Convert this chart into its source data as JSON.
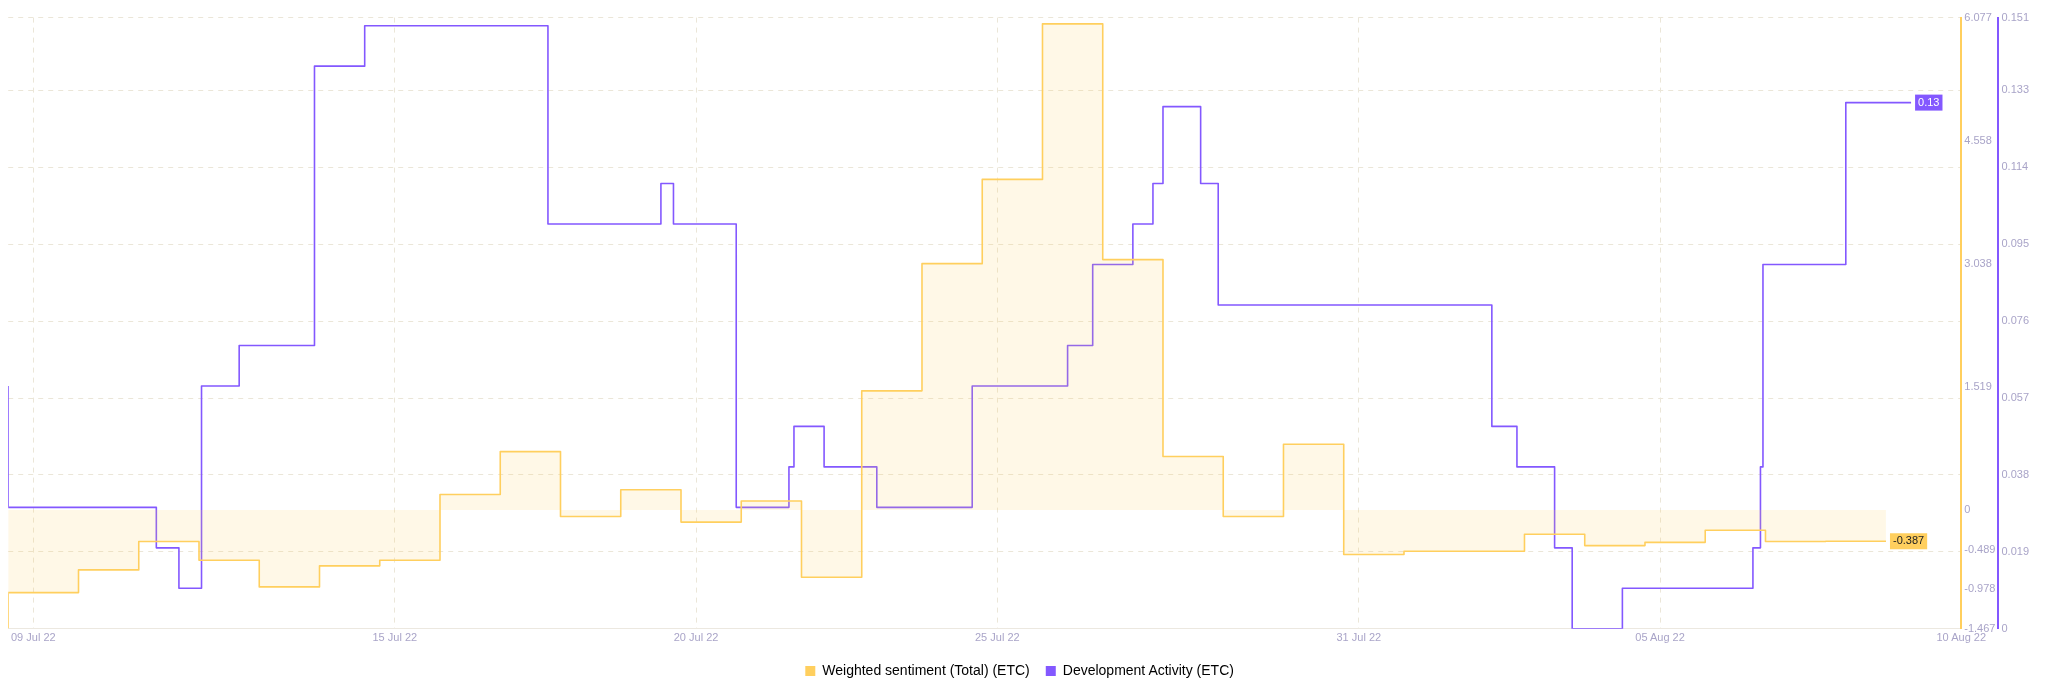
{
  "chart_data": {
    "type": "step",
    "legend": "bottom",
    "grid": true,
    "xlim": [
      "--07-08T14:00",
      "--08-10T00:00"
    ],
    "xticks": [
      {
        "value": "--07-09",
        "label": "09 Jul 22"
      },
      {
        "value": "--07-15",
        "label": "15 Jul 22"
      },
      {
        "value": "--07-20",
        "label": "20 Jul 22"
      },
      {
        "value": "--07-25",
        "label": "25 Jul 22"
      },
      {
        "value": "--07-31",
        "label": "31 Jul 22"
      },
      {
        "value": "--08-05",
        "label": "05 Aug 22"
      },
      {
        "value": "--08-10",
        "label": "10 Aug 22"
      }
    ],
    "ylim": [
      -1.467,
      6.077
    ],
    "yticks": [
      -1.467,
      -0.978,
      -0.489,
      0,
      1.519,
      3.038,
      4.558,
      6.077
    ],
    "y2lim": [
      0,
      0.151
    ],
    "y2ticks": [
      0,
      0.019,
      0.038,
      0.057,
      0.076,
      0.095,
      0.114,
      0.133,
      0.151
    ],
    "series": [
      {
        "name": "Weighted sentiment (Total) (ETC)",
        "type": "area",
        "color": "#ffcf5e",
        "x": [
          "--07-08T14:00",
          "--07-09T18:00",
          "--07-10T18:00",
          "--07-11T18:00",
          "--07-12T18:00",
          "--07-13T18:00",
          "--07-14T18:00",
          "--07-15T18:00",
          "--07-16T18:00",
          "--07-17T18:00",
          "--07-18T18:00",
          "--07-19T18:00",
          "--07-20T18:00",
          "--07-21T18:00",
          "--07-22T18:00",
          "--07-23T18:00",
          "--07-24T18:00",
          "--07-25T18:00",
          "--07-26T18:00",
          "--07-27T18:00",
          "--07-28T18:00",
          "--07-29T18:00",
          "--07-30T18:00",
          "--07-31T18:00",
          "--08-01T18:00",
          "--08-02T18:00",
          "--08-03T18:00",
          "--08-04T18:00",
          "--08-05T18:00",
          "--08-06T18:00",
          "--08-07T18:00",
          "--08-08T18:00"
        ],
        "values": [
          -1.46,
          -1.02,
          -0.74,
          -0.39,
          -0.62,
          -0.95,
          -0.69,
          -0.62,
          0.19,
          0.72,
          -0.08,
          0.25,
          -0.15,
          0.11,
          -0.83,
          1.47,
          3.04,
          4.08,
          6.0,
          3.09,
          0.66,
          -0.08,
          0.81,
          -0.55,
          -0.51,
          -0.51,
          -0.3,
          -0.44,
          -0.4,
          -0.25,
          -0.39,
          -0.387
        ],
        "value_labels": [
          null,
          null,
          null,
          null,
          null,
          null,
          null,
          null,
          null,
          null,
          null,
          null,
          null,
          null,
          null,
          null,
          null,
          null,
          null,
          null,
          null,
          null,
          null,
          null,
          null,
          null,
          null,
          null,
          null,
          null,
          null,
          "-0.387"
        ]
      },
      {
        "name": "Development Activity (ETC)",
        "axis": "y2",
        "color": "#8358ff",
        "x": [
          "--07-08T14:00",
          "--07-11T01:00",
          "--07-11T10:00",
          "--07-11T19:00",
          "--07-12T10:00",
          "--07-13T16:00",
          "--07-14T12:00",
          "--07-17T13:00",
          "--07-19T10:00",
          "--07-19T15:00",
          "--07-20T16:00",
          "--07-21T13:00",
          "--07-21T15:00",
          "--07-22T03:00",
          "--07-23T00:00",
          "--07-24T14:00",
          "--07-26T04:00",
          "--07-26T14:00",
          "--07-27T06:00",
          "--07-27T14:00",
          "--07-27T18:00",
          "--07-28T09:00",
          "--07-28T16:00",
          "--08-02T05:00",
          "--08-02T15:00",
          "--08-03T06:00",
          "--08-03T13:00",
          "--08-04T09:00",
          "--08-06T13:00",
          "--08-06T16:00",
          "--08-06T17:00",
          "--08-08T02:00",
          "--08-08T15:00",
          "--08-09T04:00"
        ],
        "values": [
          0.06,
          0.03,
          0.02,
          0.01,
          0.06,
          0.07,
          0.139,
          0.149,
          0.1,
          0.11,
          0.1,
          0.03,
          0.04,
          0.05,
          0.04,
          0.03,
          0.06,
          0.07,
          0.09,
          0.1,
          0.11,
          0.129,
          0.11,
          0.08,
          0.05,
          0.04,
          0.02,
          0,
          0.01,
          0.02,
          0.04,
          0.09,
          0.13,
          0.13
        ],
        "value_labels": [
          null,
          null,
          null,
          null,
          null,
          null,
          null,
          null,
          null,
          null,
          null,
          null,
          null,
          null,
          null,
          null,
          null,
          null,
          null,
          null,
          null,
          null,
          null,
          null,
          null,
          null,
          null,
          null,
          null,
          null,
          null,
          null,
          null,
          "0.13"
        ]
      }
    ]
  }
}
